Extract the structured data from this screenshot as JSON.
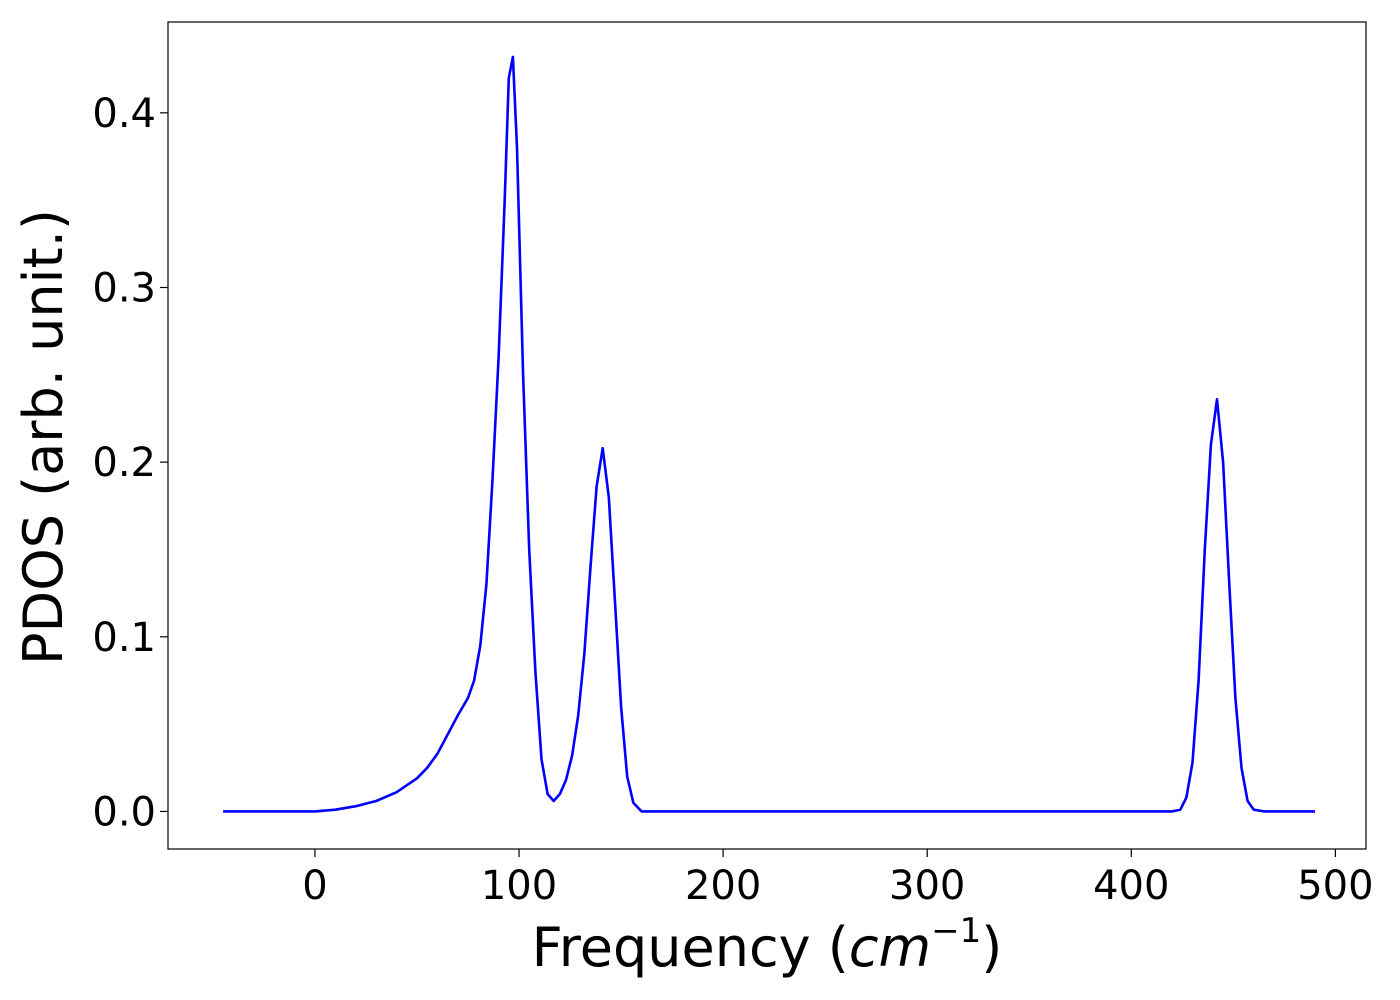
{
  "chart_data": {
    "type": "line",
    "title": "",
    "xlabel": "Frequency (",
    "xlabel_math": "cm",
    "xlabel_sup": "−1",
    "xlabel_close": ")",
    "ylabel": "PDOS (arb. unit.)",
    "xlim": [
      -72,
      515
    ],
    "ylim": [
      -0.0215,
      0.452
    ],
    "xticks": [
      0,
      100,
      200,
      300,
      400,
      500
    ],
    "yticks": [
      0.0,
      0.1,
      0.2,
      0.3,
      0.4
    ],
    "xtick_labels": [
      "0",
      "100",
      "200",
      "300",
      "400",
      "500"
    ],
    "ytick_labels": [
      "0.0",
      "0.1",
      "0.2",
      "0.3",
      "0.4"
    ],
    "grid": false,
    "legend": "none",
    "series": [
      {
        "color": "#0000ff",
        "x": [
          -45,
          0,
          10,
          20,
          30,
          40,
          50,
          55,
          60,
          65,
          70,
          75,
          78,
          81,
          84,
          87,
          90,
          93,
          95,
          97,
          99,
          102,
          105,
          108,
          111,
          114,
          117,
          120,
          123,
          126,
          129,
          132,
          135,
          138,
          141,
          144,
          147,
          150,
          153,
          156,
          160,
          200,
          300,
          400,
          420,
          424,
          427,
          430,
          433,
          436,
          439,
          442,
          445,
          448,
          451,
          454,
          457,
          460,
          465,
          490
        ],
        "y": [
          0,
          0,
          0.001,
          0.003,
          0.006,
          0.011,
          0.019,
          0.025,
          0.033,
          0.044,
          0.055,
          0.065,
          0.075,
          0.095,
          0.13,
          0.19,
          0.26,
          0.35,
          0.42,
          0.432,
          0.38,
          0.25,
          0.15,
          0.08,
          0.03,
          0.01,
          0.006,
          0.01,
          0.018,
          0.032,
          0.055,
          0.09,
          0.14,
          0.186,
          0.208,
          0.18,
          0.12,
          0.06,
          0.02,
          0.005,
          0,
          0,
          0,
          0,
          0,
          0.001,
          0.008,
          0.028,
          0.075,
          0.15,
          0.21,
          0.236,
          0.2,
          0.13,
          0.065,
          0.025,
          0.006,
          0.001,
          0,
          0
        ]
      }
    ]
  }
}
